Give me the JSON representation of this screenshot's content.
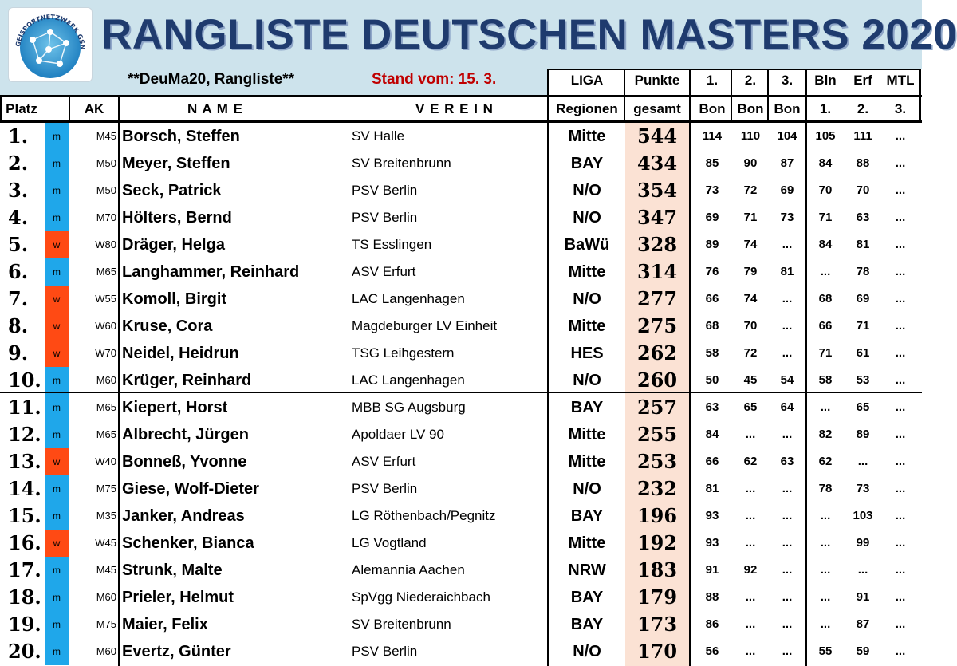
{
  "title": "RANGLISTE DEUTSCHEN MASTERS 2020",
  "logo_text": "GEISPORTNETZWERK GSN",
  "subtitle": "**DeuMa20, Rangliste**",
  "stand": "Stand vom: 15. 3.",
  "headers": {
    "liga_top": "LIGA",
    "liga_bottom": "Regionen",
    "punkte_top": "Punkte",
    "punkte_bottom": "gesamt",
    "platz": "Platz",
    "ak": "AK",
    "name": "N A M E",
    "verein": "V E R E I N",
    "c1_top": "1.",
    "c1_bottom": "Bon",
    "c2_top": "2.",
    "c2_bottom": "Bon",
    "c3_top": "3.",
    "c3_bottom": "Bon",
    "c4_top": "Bln",
    "c4_bottom": "1.",
    "c5_top": "Erf",
    "c5_bottom": "2.",
    "c6_top": "MTL",
    "c6_bottom": "3."
  },
  "colors": {
    "m": "#1fa7ea",
    "w": "#ff4a14",
    "header_bg": "#cde3ec",
    "points_bg": "#fbe2d4",
    "title": "#1f3b6e",
    "stand": "#c00000"
  },
  "rows": [
    {
      "platz": "1.",
      "sex": "m",
      "ak": "M45",
      "name": "Borsch, Steffen",
      "verein": "SV Halle",
      "liga": "Mitte",
      "punkte": "544",
      "s1": "114",
      "s2": "110",
      "s3": "104",
      "s4": "105",
      "s5": "111",
      "s6": "..."
    },
    {
      "platz": "2.",
      "sex": "m",
      "ak": "M50",
      "name": "Meyer, Steffen",
      "verein": "SV Breitenbrunn",
      "liga": "BAY",
      "punkte": "434",
      "s1": "85",
      "s2": "90",
      "s3": "87",
      "s4": "84",
      "s5": "88",
      "s6": "..."
    },
    {
      "platz": "3.",
      "sex": "m",
      "ak": "M50",
      "name": "Seck, Patrick",
      "verein": "PSV Berlin",
      "liga": "N/O",
      "punkte": "354",
      "s1": "73",
      "s2": "72",
      "s3": "69",
      "s4": "70",
      "s5": "70",
      "s6": "..."
    },
    {
      "platz": "4.",
      "sex": "m",
      "ak": "M70",
      "name": "Hölters, Bernd",
      "verein": "PSV Berlin",
      "liga": "N/O",
      "punkte": "347",
      "s1": "69",
      "s2": "71",
      "s3": "73",
      "s4": "71",
      "s5": "63",
      "s6": "..."
    },
    {
      "platz": "5.",
      "sex": "w",
      "ak": "W80",
      "name": "Dräger, Helga",
      "verein": "TS Esslingen",
      "liga": "BaWü",
      "punkte": "328",
      "s1": "89",
      "s2": "74",
      "s3": "...",
      "s4": "84",
      "s5": "81",
      "s6": "..."
    },
    {
      "platz": "6.",
      "sex": "m",
      "ak": "M65",
      "name": "Langhammer, Reinhard",
      "verein": "ASV Erfurt",
      "liga": "Mitte",
      "punkte": "314",
      "s1": "76",
      "s2": "79",
      "s3": "81",
      "s4": "...",
      "s5": "78",
      "s6": "..."
    },
    {
      "platz": "7.",
      "sex": "w",
      "ak": "W55",
      "name": "Komoll, Birgit",
      "verein": "LAC Langenhagen",
      "liga": "N/O",
      "punkte": "277",
      "s1": "66",
      "s2": "74",
      "s3": "...",
      "s4": "68",
      "s5": "69",
      "s6": "..."
    },
    {
      "platz": "8.",
      "sex": "w",
      "ak": "W60",
      "name": "Kruse, Cora",
      "verein": "Magdeburger LV Einheit",
      "liga": "Mitte",
      "punkte": "275",
      "s1": "68",
      "s2": "70",
      "s3": "...",
      "s4": "66",
      "s5": "71",
      "s6": "..."
    },
    {
      "platz": "9.",
      "sex": "w",
      "ak": "W70",
      "name": "Neidel, Heidrun",
      "verein": "TSG Leihgestern",
      "liga": "HES",
      "punkte": "262",
      "s1": "58",
      "s2": "72",
      "s3": "...",
      "s4": "71",
      "s5": "61",
      "s6": "..."
    },
    {
      "platz": "10.",
      "sex": "m",
      "ak": "M60",
      "name": "Krüger, Reinhard",
      "verein": "LAC Langenhagen",
      "liga": "N/O",
      "punkte": "260",
      "s1": "50",
      "s2": "45",
      "s3": "54",
      "s4": "58",
      "s5": "53",
      "s6": "..."
    },
    {
      "platz": "11.",
      "sex": "m",
      "ak": "M65",
      "name": "Kiepert, Horst",
      "verein": "MBB SG Augsburg",
      "liga": "BAY",
      "punkte": "257",
      "s1": "63",
      "s2": "65",
      "s3": "64",
      "s4": "...",
      "s5": "65",
      "s6": "..."
    },
    {
      "platz": "12.",
      "sex": "m",
      "ak": "M65",
      "name": "Albrecht, Jürgen",
      "verein": "Apoldaer LV 90",
      "liga": "Mitte",
      "punkte": "255",
      "s1": "84",
      "s2": "...",
      "s3": "...",
      "s4": "82",
      "s5": "89",
      "s6": "..."
    },
    {
      "platz": "13.",
      "sex": "w",
      "ak": "W40",
      "name": "Bonneß, Yvonne",
      "verein": "ASV Erfurt",
      "liga": "Mitte",
      "punkte": "253",
      "s1": "66",
      "s2": "62",
      "s3": "63",
      "s4": "62",
      "s5": "...",
      "s6": "..."
    },
    {
      "platz": "14.",
      "sex": "m",
      "ak": "M75",
      "name": "Giese, Wolf-Dieter",
      "verein": "PSV Berlin",
      "liga": "N/O",
      "punkte": "232",
      "s1": "81",
      "s2": "...",
      "s3": "...",
      "s4": "78",
      "s5": "73",
      "s6": "..."
    },
    {
      "platz": "15.",
      "sex": "m",
      "ak": "M35",
      "name": "Janker, Andreas",
      "verein": "LG Röthenbach/Pegnitz",
      "liga": "BAY",
      "punkte": "196",
      "s1": "93",
      "s2": "...",
      "s3": "...",
      "s4": "...",
      "s5": "103",
      "s6": "..."
    },
    {
      "platz": "16.",
      "sex": "w",
      "ak": "W45",
      "name": "Schenker, Bianca",
      "verein": "LG Vogtland",
      "liga": "Mitte",
      "punkte": "192",
      "s1": "93",
      "s2": "...",
      "s3": "...",
      "s4": "...",
      "s5": "99",
      "s6": "..."
    },
    {
      "platz": "17.",
      "sex": "m",
      "ak": "M45",
      "name": "Strunk, Malte",
      "verein": "Alemannia Aachen",
      "liga": "NRW",
      "punkte": "183",
      "s1": "91",
      "s2": "92",
      "s3": "...",
      "s4": "...",
      "s5": "...",
      "s6": "..."
    },
    {
      "platz": "18.",
      "sex": "m",
      "ak": "M60",
      "name": "Prieler, Helmut",
      "verein": "SpVgg Niederaichbach",
      "liga": "BAY",
      "punkte": "179",
      "s1": "88",
      "s2": "...",
      "s3": "...",
      "s4": "...",
      "s5": "91",
      "s6": "..."
    },
    {
      "platz": "19.",
      "sex": "m",
      "ak": "M75",
      "name": "Maier, Felix",
      "verein": "SV Breitenbrunn",
      "liga": "BAY",
      "punkte": "173",
      "s1": "86",
      "s2": "...",
      "s3": "...",
      "s4": "...",
      "s5": "87",
      "s6": "..."
    },
    {
      "platz": "20.",
      "sex": "m",
      "ak": "M60",
      "name": "Evertz, Günter",
      "verein": "PSV Berlin",
      "liga": "N/O",
      "punkte": "170",
      "s1": "56",
      "s2": "...",
      "s3": "...",
      "s4": "55",
      "s5": "59",
      "s6": "..."
    }
  ]
}
